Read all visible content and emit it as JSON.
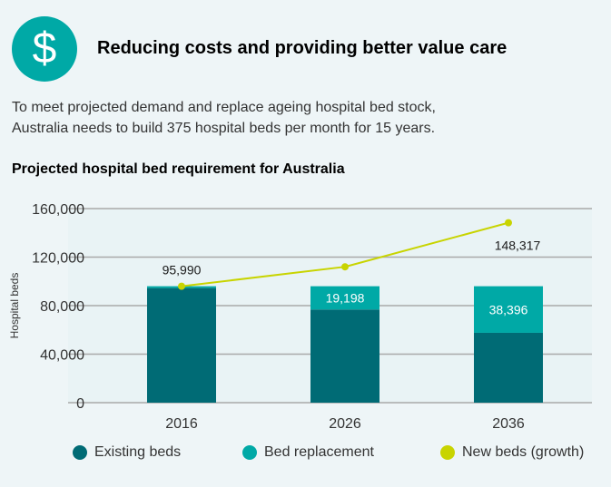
{
  "header": {
    "icon": "dollar-icon",
    "icon_glyph": "$",
    "title": "Reducing costs and providing better value care"
  },
  "intro": {
    "line1": "To meet projected demand and replace ageing hospital bed stock,",
    "line2": "Australia needs to build 375 hospital beds per month for 15 years."
  },
  "colors": {
    "existing": "#006b75",
    "replacement": "#00a9a6",
    "growth": "#c8d400"
  },
  "chart_data": {
    "type": "bar",
    "title": "Projected hospital bed requirement for Australia",
    "xlabel": "",
    "ylabel": "Hospital beds",
    "ylim": [
      0,
      160000
    ],
    "yticks": [
      0,
      40000,
      80000,
      120000,
      160000
    ],
    "ytick_labels": [
      "0",
      "40,000",
      "80,000",
      "120,000",
      "160,000"
    ],
    "categories": [
      "2016",
      "2026",
      "2036"
    ],
    "series": [
      {
        "name": "Existing beds",
        "type": "bar",
        "stacked": true,
        "values": [
          94500,
          76792,
          57594
        ]
      },
      {
        "name": "Bed replacement",
        "type": "bar",
        "stacked": true,
        "values": [
          1490,
          19198,
          38396
        ]
      },
      {
        "name": "New beds (growth)",
        "type": "line",
        "values": [
          95990,
          112000,
          148317
        ]
      }
    ],
    "data_labels": {
      "replacement": [
        "",
        "19,198",
        "38,396"
      ],
      "growth": [
        "95,990",
        "",
        "148,317"
      ]
    },
    "legend": [
      "Existing beds",
      "Bed replacement",
      "New beds (growth)"
    ],
    "legend_position": "bottom",
    "grid": true
  }
}
